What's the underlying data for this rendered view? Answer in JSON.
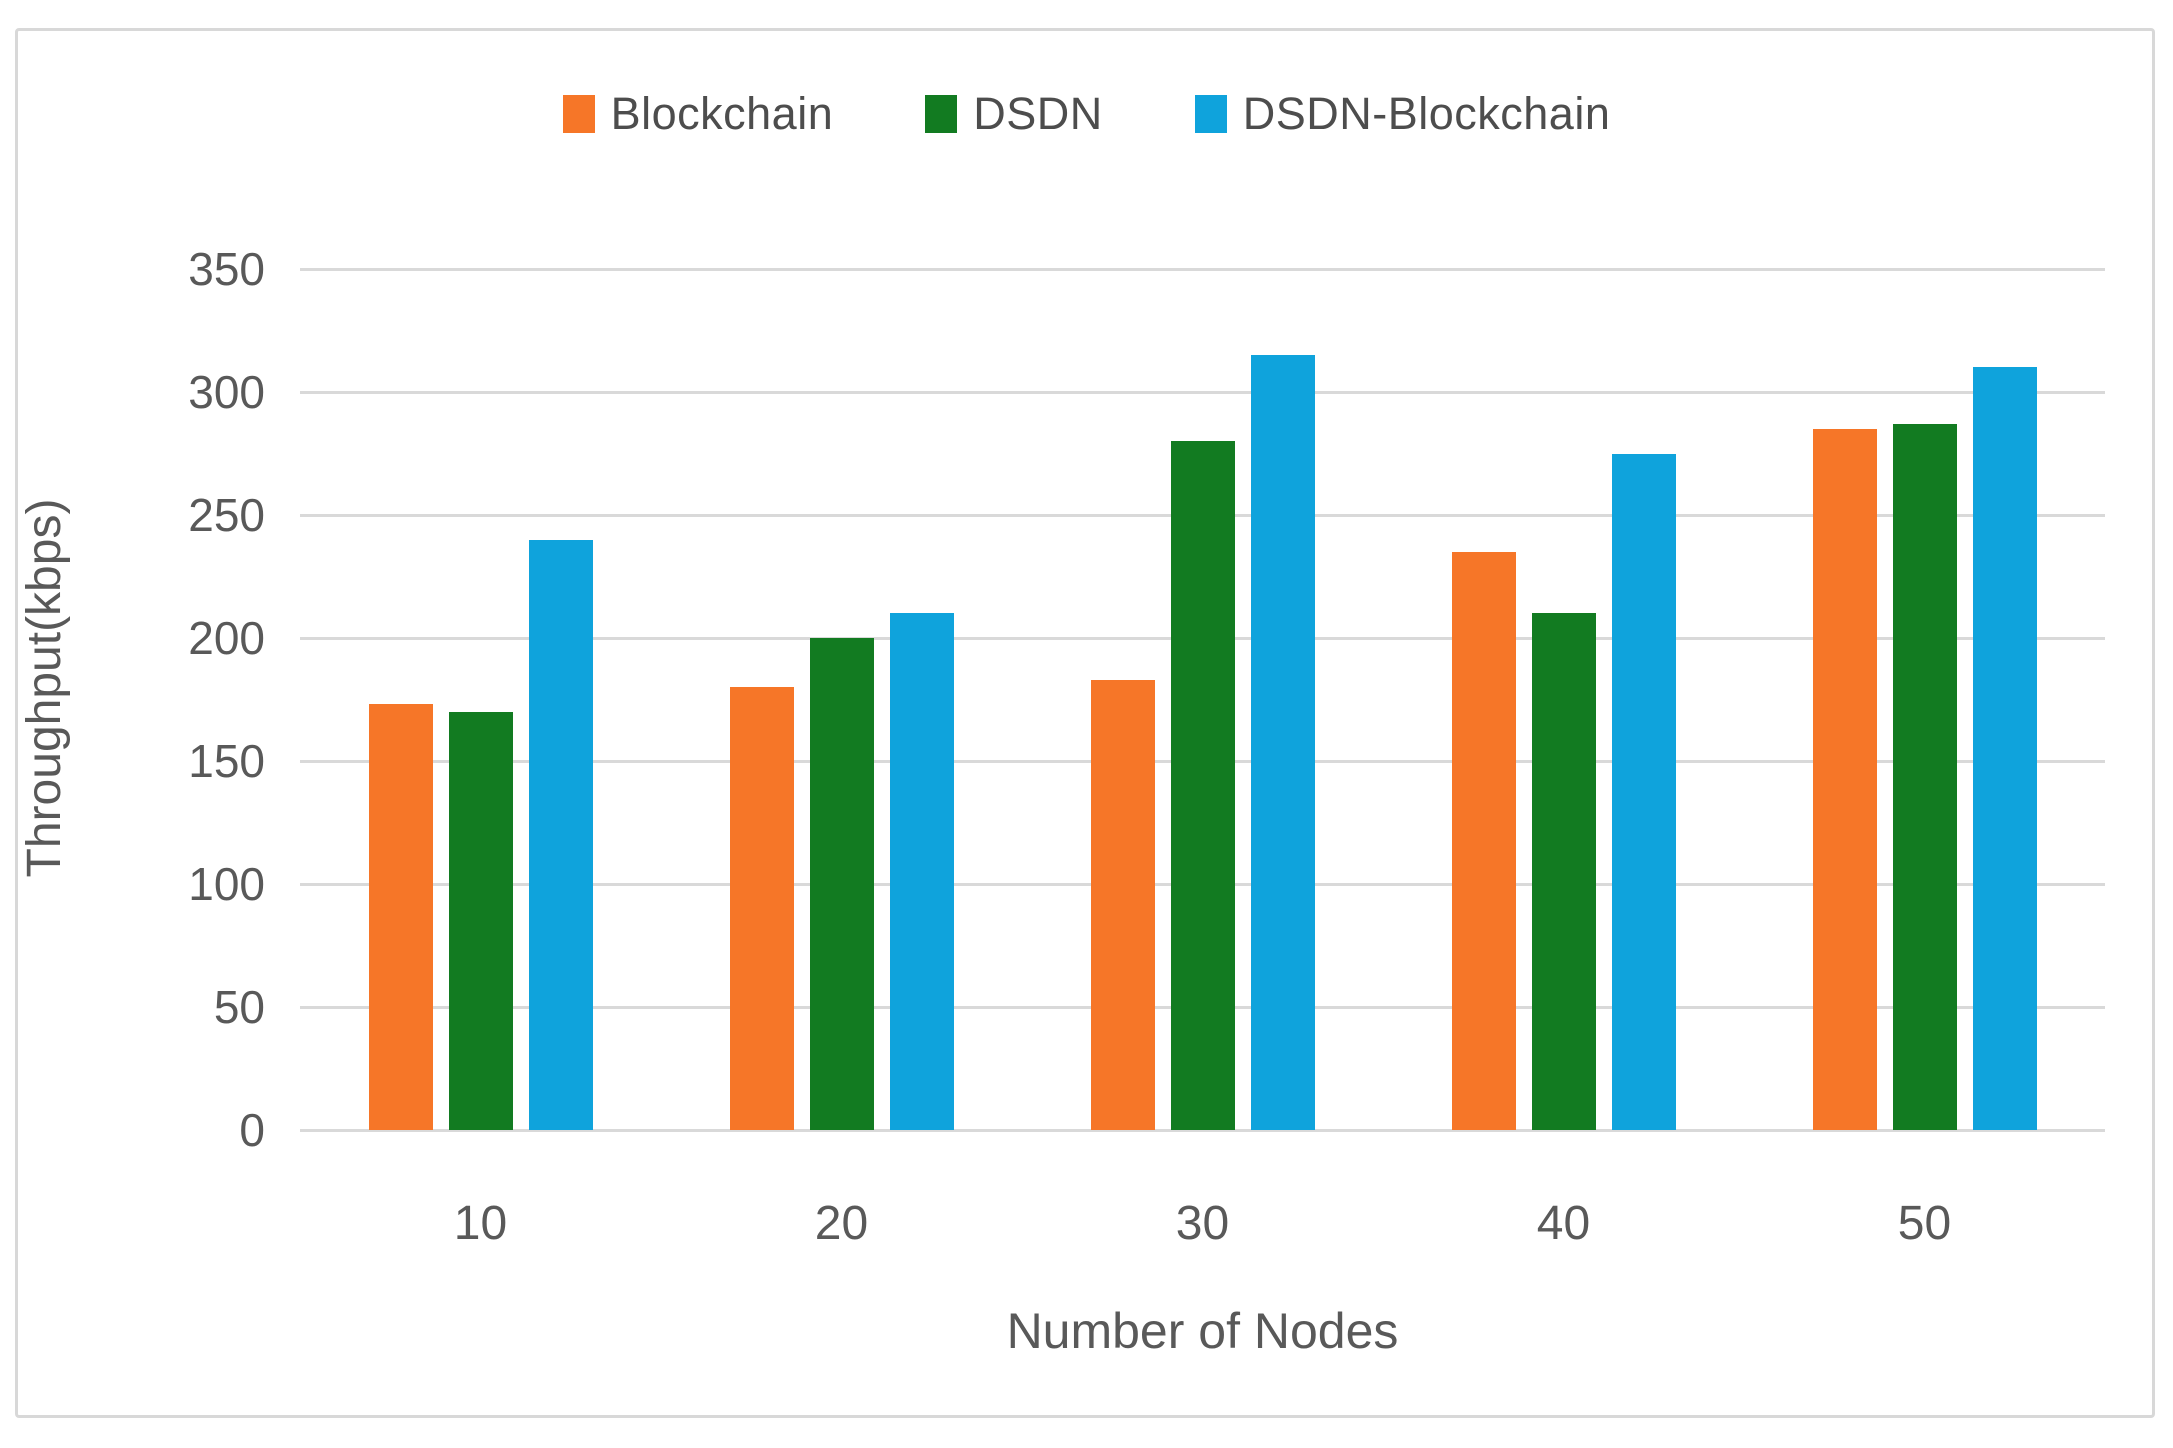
{
  "figure": {
    "background_color": "#ffffff",
    "border_color": "#d8d8d8",
    "gridline_color": "#d9d9d9",
    "text_color": "#595959"
  },
  "chart_data": {
    "type": "bar",
    "title": "",
    "xlabel": "Number of Nodes",
    "ylabel": "Throughput(kbps)",
    "categories": [
      "10",
      "20",
      "30",
      "40",
      "50"
    ],
    "series": [
      {
        "name": "Blockchain",
        "color": "#f67628",
        "values": [
          173,
          180,
          183,
          235,
          285
        ]
      },
      {
        "name": "DSDN",
        "color": "#127b21",
        "values": [
          170,
          200,
          280,
          210,
          287
        ]
      },
      {
        "name": "DSDN-Blockchain",
        "color": "#0fa3dc",
        "values": [
          240,
          210,
          315,
          275,
          310
        ]
      }
    ],
    "ylim": [
      0,
      350
    ],
    "y_ticks": [
      0,
      50,
      100,
      150,
      200,
      250,
      300,
      350
    ],
    "grid": true,
    "legend_position": "top"
  }
}
